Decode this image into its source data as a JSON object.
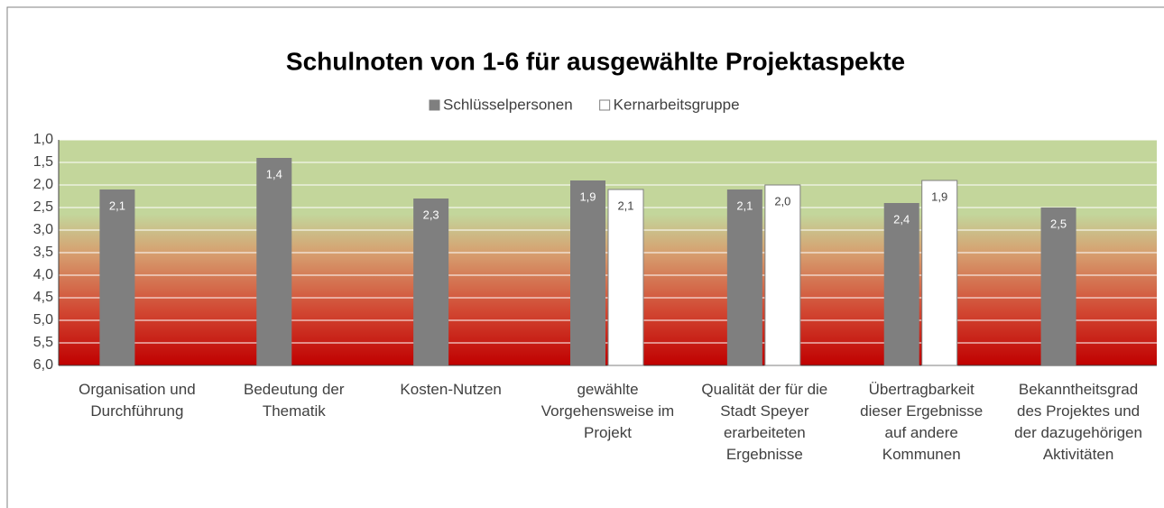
{
  "chart_data": {
    "type": "bar",
    "title": "Schulnoten von 1-6 für ausgewählte Projektaspekte",
    "categories": [
      "Organisation und Durchführung",
      "Bedeutung der Thematik",
      "Kosten-Nutzen",
      "gewählte Vorgehensweise im Projekt",
      "Qualität der für die Stadt Speyer erarbeiteten Ergebnisse",
      "Übertragbarkeit dieser Ergebnisse auf andere Kommunen",
      "Bekanntheitsgrad des Projektes und der dazugehörigen Aktivitäten"
    ],
    "series": [
      {
        "name": "Schlüsselpersonen",
        "color": "#7f7f7f",
        "values": [
          2.1,
          1.4,
          2.3,
          1.9,
          2.1,
          2.4,
          2.5
        ],
        "value_labels": [
          "2,1",
          "1,4",
          "2,3",
          "1,9",
          "2,1",
          "2,4",
          "2,5"
        ]
      },
      {
        "name": "Kernarbeitsgruppe",
        "color": "#ffffff",
        "values": [
          null,
          null,
          null,
          2.1,
          2.0,
          1.9,
          null
        ],
        "value_labels": [
          null,
          null,
          null,
          "2,1",
          "2,0",
          "1,9",
          null
        ]
      }
    ],
    "ylim": [
      1,
      6
    ],
    "y_inverted": true,
    "yticks": [
      {
        "value": 1,
        "label": "1,0"
      },
      {
        "value": 1.5,
        "label": "1,5"
      },
      {
        "value": 2,
        "label": "2,0"
      },
      {
        "value": 2.5,
        "label": "2,5"
      },
      {
        "value": 3,
        "label": "3,0"
      },
      {
        "value": 3.5,
        "label": "3,5"
      },
      {
        "value": 4,
        "label": "4,0"
      },
      {
        "value": 4.5,
        "label": "4,5"
      },
      {
        "value": 5,
        "label": "5,0"
      },
      {
        "value": 5.5,
        "label": "5,5"
      },
      {
        "value": 6,
        "label": "6,0"
      }
    ],
    "grid": true,
    "legend": "top"
  }
}
